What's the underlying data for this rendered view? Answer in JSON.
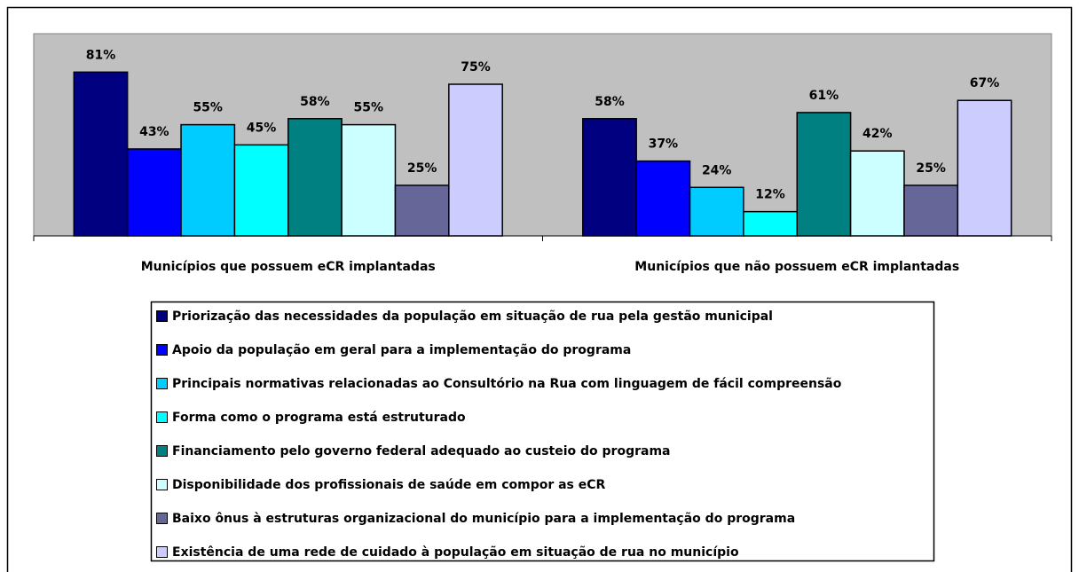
{
  "chart_data": {
    "type": "bar",
    "categories": [
      "Municípios que possuem eCR implantadas",
      "Municípios que não possuem eCR implantadas"
    ],
    "ylim": [
      0,
      100
    ],
    "series": [
      {
        "name": "Priorização das necessidades da população em situação de rua pela gestão municipal",
        "color": "#000080",
        "values": [
          81,
          58
        ],
        "value_labels": [
          "81%",
          "58%"
        ]
      },
      {
        "name": "Apoio da população em geral para a implementação do programa",
        "color": "#0000ff",
        "values": [
          43,
          37
        ],
        "value_labels": [
          "43%",
          "37%"
        ]
      },
      {
        "name": "Principais normativas relacionadas ao Consultório na Rua com linguagem de fácil compreensão",
        "color": "#00ccff",
        "values": [
          55,
          24
        ],
        "value_labels": [
          "55%",
          "24%"
        ]
      },
      {
        "name": "Forma como o programa está estruturado",
        "color": "#00ffff",
        "values": [
          45,
          12
        ],
        "value_labels": [
          "45%",
          "12%"
        ]
      },
      {
        "name": "Financiamento pelo governo federal adequado ao custeio do programa",
        "color": "#008080",
        "values": [
          58,
          61
        ],
        "value_labels": [
          "58%",
          "61%"
        ]
      },
      {
        "name": "Disponibilidade dos profissionais de saúde em compor as eCR",
        "color": "#ccffff",
        "values": [
          55,
          42
        ],
        "value_labels": [
          "55%",
          "42%"
        ]
      },
      {
        "name": "Baixo ônus à estruturas organizacional do município para a implementação do programa",
        "color": "#666699",
        "values": [
          25,
          25
        ],
        "value_labels": [
          "25%",
          "25%"
        ]
      },
      {
        "name": "Existência de uma rede de cuidado à população em situação de rua no município",
        "color": "#ccccff",
        "values": [
          75,
          67
        ],
        "value_labels": [
          "75%",
          "67%"
        ]
      }
    ]
  }
}
